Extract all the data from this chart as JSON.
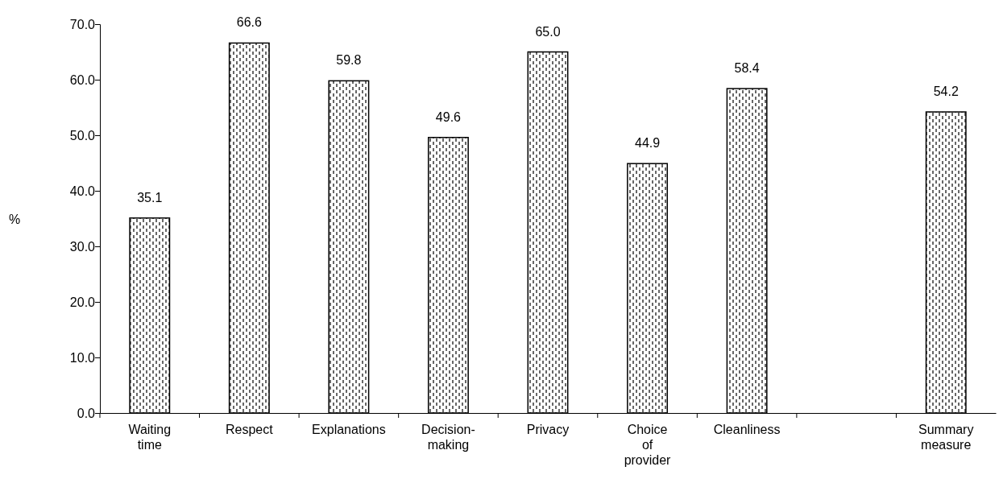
{
  "chart_data": {
    "type": "bar",
    "ylabel": "%",
    "categories": [
      "Waiting time",
      "Respect",
      "Explanations",
      "Decision-making",
      "Privacy",
      "Choice of provider",
      "Cleanliness",
      null,
      "Summary measure"
    ],
    "values": [
      35.1,
      66.6,
      59.8,
      49.6,
      65.0,
      44.9,
      58.4,
      null,
      54.2
    ],
    "value_labels": [
      "35.1",
      "66.6",
      "59.8",
      "49.6",
      "65.0",
      "44.9",
      "58.4",
      null,
      "54.2"
    ],
    "color": "#000000",
    "ylim": [
      0,
      70
    ],
    "yticks": [
      {
        "value": 0,
        "label": "0.0"
      },
      {
        "value": 10,
        "label": "10.0"
      },
      {
        "value": 20,
        "label": "20.0"
      },
      {
        "value": 30,
        "label": "30.0"
      },
      {
        "value": 40,
        "label": "40.0"
      },
      {
        "value": 50,
        "label": "50.0"
      },
      {
        "value": 60,
        "label": "60.0"
      },
      {
        "value": 70,
        "label": "70.0"
      }
    ],
    "grid": false
  }
}
